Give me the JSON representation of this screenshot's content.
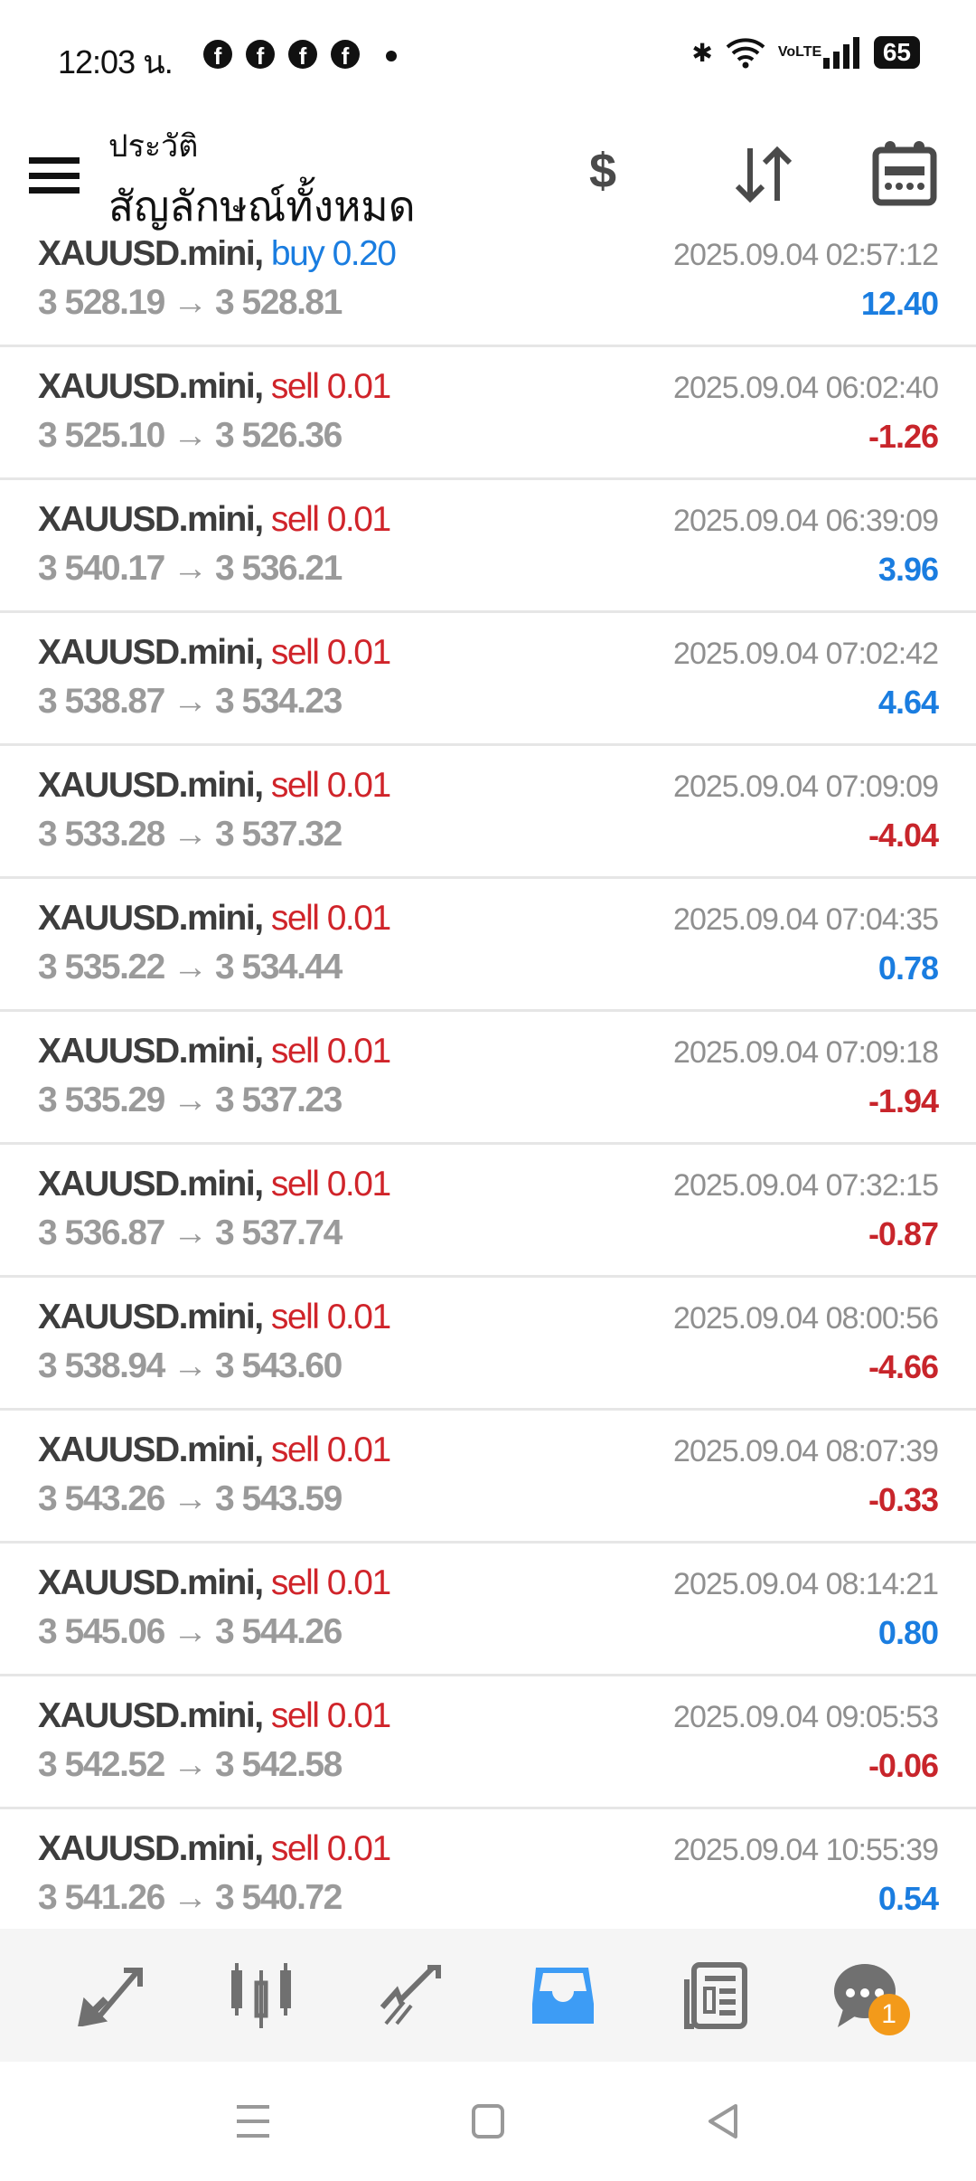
{
  "status_bar": {
    "time": "12:03 น.",
    "battery": "65",
    "network": "VoLTE"
  },
  "header": {
    "subtitle": "ประวัติ",
    "title": "สัญลักษณ์ทั้งหมด"
  },
  "colors": {
    "buy": "#1a7de0",
    "sell": "#d0242a",
    "profit": "#1a7de0",
    "loss": "#c8252b",
    "active_tab": "#3d9cf5"
  },
  "trades": [
    {
      "symbol": "XAUUSD.mini,",
      "side": "buy 0.20",
      "side_type": "buy",
      "open": "3 528.19",
      "close": "3 528.81",
      "time": "2025.09.04 02:57:12",
      "profit": "12.40"
    },
    {
      "symbol": "XAUUSD.mini,",
      "side": "sell 0.01",
      "side_type": "sell",
      "open": "3 525.10",
      "close": "3 526.36",
      "time": "2025.09.04 06:02:40",
      "profit": "-1.26"
    },
    {
      "symbol": "XAUUSD.mini,",
      "side": "sell 0.01",
      "side_type": "sell",
      "open": "3 540.17",
      "close": "3 536.21",
      "time": "2025.09.04 06:39:09",
      "profit": "3.96"
    },
    {
      "symbol": "XAUUSD.mini,",
      "side": "sell 0.01",
      "side_type": "sell",
      "open": "3 538.87",
      "close": "3 534.23",
      "time": "2025.09.04 07:02:42",
      "profit": "4.64"
    },
    {
      "symbol": "XAUUSD.mini,",
      "side": "sell 0.01",
      "side_type": "sell",
      "open": "3 533.28",
      "close": "3 537.32",
      "time": "2025.09.04 07:09:09",
      "profit": "-4.04"
    },
    {
      "symbol": "XAUUSD.mini,",
      "side": "sell 0.01",
      "side_type": "sell",
      "open": "3 535.22",
      "close": "3 534.44",
      "time": "2025.09.04 07:04:35",
      "profit": "0.78"
    },
    {
      "symbol": "XAUUSD.mini,",
      "side": "sell 0.01",
      "side_type": "sell",
      "open": "3 535.29",
      "close": "3 537.23",
      "time": "2025.09.04 07:09:18",
      "profit": "-1.94"
    },
    {
      "symbol": "XAUUSD.mini,",
      "side": "sell 0.01",
      "side_type": "sell",
      "open": "3 536.87",
      "close": "3 537.74",
      "time": "2025.09.04 07:32:15",
      "profit": "-0.87"
    },
    {
      "symbol": "XAUUSD.mini,",
      "side": "sell 0.01",
      "side_type": "sell",
      "open": "3 538.94",
      "close": "3 543.60",
      "time": "2025.09.04 08:00:56",
      "profit": "-4.66"
    },
    {
      "symbol": "XAUUSD.mini,",
      "side": "sell 0.01",
      "side_type": "sell",
      "open": "3 543.26",
      "close": "3 543.59",
      "time": "2025.09.04 08:07:39",
      "profit": "-0.33"
    },
    {
      "symbol": "XAUUSD.mini,",
      "side": "sell 0.01",
      "side_type": "sell",
      "open": "3 545.06",
      "close": "3 544.26",
      "time": "2025.09.04 08:14:21",
      "profit": "0.80"
    },
    {
      "symbol": "XAUUSD.mini,",
      "side": "sell 0.01",
      "side_type": "sell",
      "open": "3 542.52",
      "close": "3 542.58",
      "time": "2025.09.04 09:05:53",
      "profit": "-0.06"
    },
    {
      "symbol": "XAUUSD.mini,",
      "side": "sell 0.01",
      "side_type": "sell",
      "open": "3 541.26",
      "close": "3 540.72",
      "time": "2025.09.04 10:55:39",
      "profit": "0.54"
    }
  ],
  "arrow": "→",
  "bottom_nav": {
    "items": [
      "quotes-icon",
      "chart-icon",
      "trade-icon",
      "history-icon",
      "news-icon",
      "messages-icon"
    ],
    "active": "history-icon",
    "messages_badge": "1"
  }
}
